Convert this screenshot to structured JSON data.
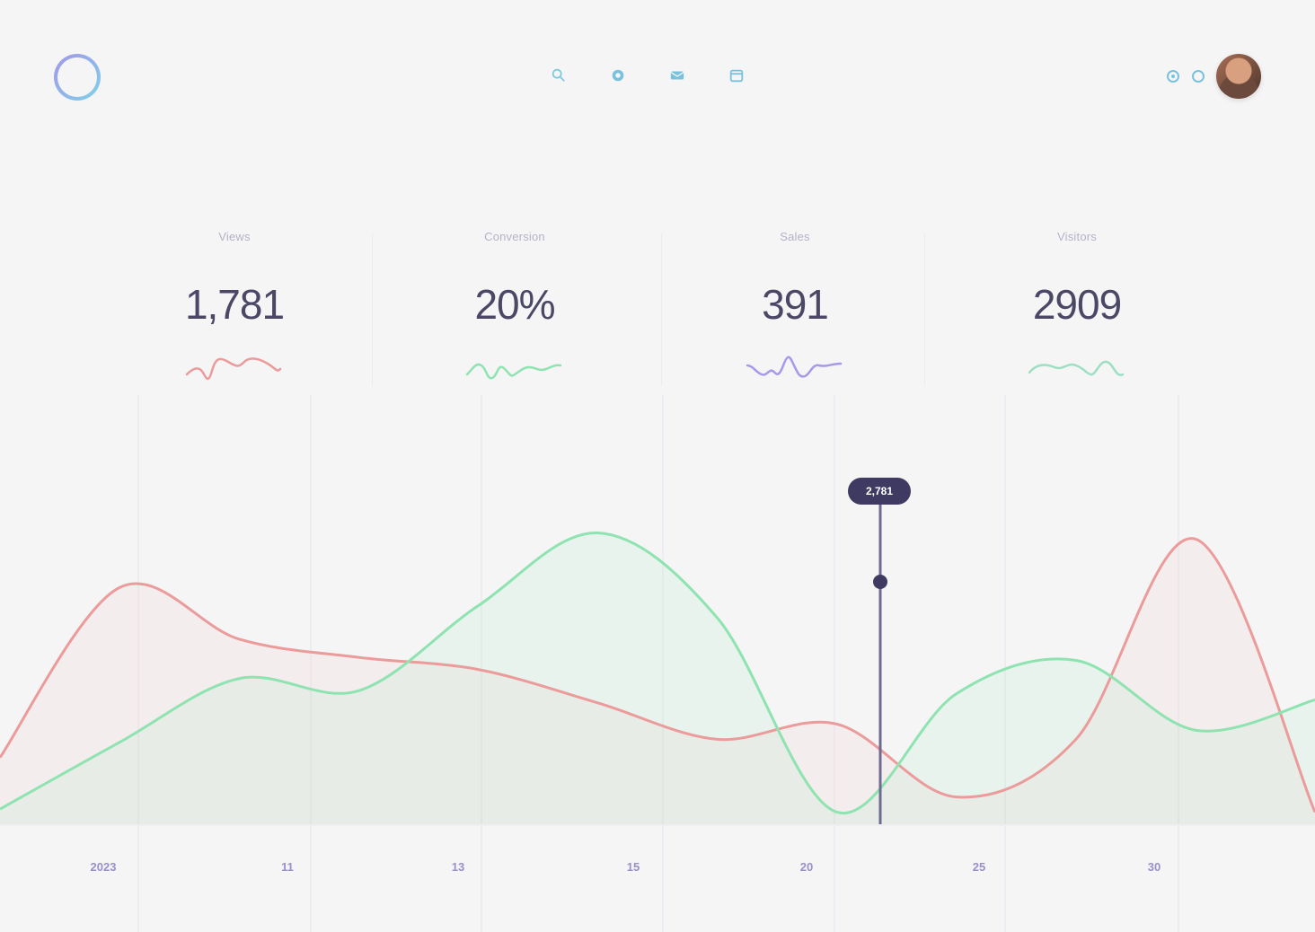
{
  "header": {
    "logo": {
      "icon": "ring-logo-icon"
    },
    "nav": [
      {
        "icon": "search-icon"
      },
      {
        "icon": "dashboard-icon"
      },
      {
        "icon": "mail-icon"
      },
      {
        "icon": "calendar-icon"
      }
    ],
    "actions": [
      {
        "icon": "settings-icon"
      },
      {
        "icon": "notification-icon"
      }
    ],
    "avatar": {
      "icon": "user-avatar"
    }
  },
  "stats": [
    {
      "label": "Views",
      "value": "1,781",
      "color": "#ec9b9b"
    },
    {
      "label": "Conversion",
      "value": "20%",
      "color": "#8fe3b0"
    },
    {
      "label": "Sales",
      "value": "391",
      "color": "#a898ea"
    },
    {
      "label": "Visitors",
      "value": "2909",
      "color": "#9ddfc3"
    }
  ],
  "chart_data": {
    "type": "area",
    "title": "",
    "xlabel": "",
    "ylabel": "",
    "x_ticks": [
      "2023",
      "11",
      "13",
      "15",
      "20",
      "25",
      "30"
    ],
    "tooltip": {
      "value": "2,781"
    },
    "series": [
      {
        "color": "#ec9b9b",
        "values": [
          22,
          78,
          61,
          55,
          51,
          40,
          28,
          33,
          9,
          28,
          94,
          4
        ]
      },
      {
        "color": "#8fe3b0",
        "values": [
          5,
          27,
          48,
          44,
          72,
          96,
          68,
          4,
          43,
          54,
          31,
          41
        ]
      }
    ],
    "grid": true
  }
}
